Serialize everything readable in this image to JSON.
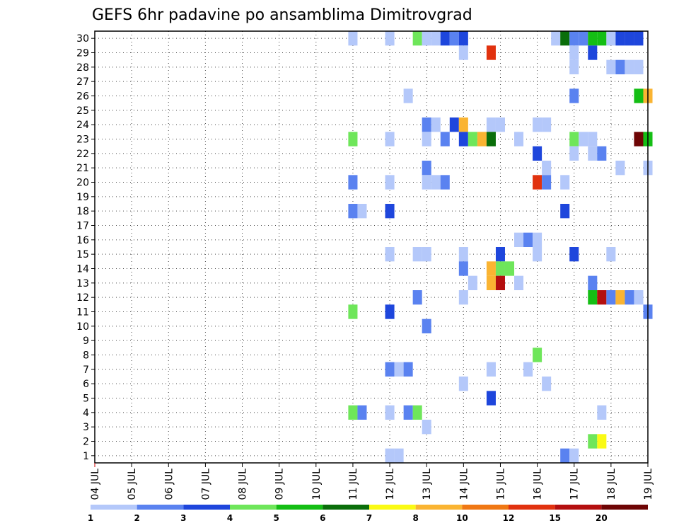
{
  "chart_data": {
    "type": "heatmap",
    "title": "GEFS 6hr padavine po ansamblima Dimitrovgrad",
    "x_tick_labels": [
      "04 JUL",
      "05 JUL",
      "06 JUL",
      "07 JUL",
      "08 JUL",
      "09 JUL",
      "10 JUL",
      "11 JUL",
      "12 JUL",
      "13 JUL",
      "14 JUL",
      "15 JUL",
      "16 JUL",
      "17 JUL",
      "18 JUL",
      "19 JUL"
    ],
    "x_range": [
      "04 JUL 00z",
      "19 JUL 00z"
    ],
    "x_step_hours": 6,
    "y_tick_labels": [
      "1",
      "2",
      "3",
      "4",
      "5",
      "6",
      "7",
      "8",
      "9",
      "10",
      "11",
      "12",
      "13",
      "14",
      "15",
      "16",
      "17",
      "18",
      "19",
      "20",
      "21",
      "22",
      "23",
      "24",
      "25",
      "26",
      "27",
      "28",
      "29",
      "30"
    ],
    "ylim": [
      1,
      30
    ],
    "grid": "dotted",
    "colorbar": {
      "position": "bottom",
      "tick_labels": [
        "1",
        "2",
        "3",
        "4",
        "5",
        "6",
        "7",
        "8",
        "10",
        "12",
        "15",
        "20"
      ],
      "colors": [
        "#b4c8fa",
        "#5a82f0",
        "#1e46dc",
        "#6ee65a",
        "#14be14",
        "#0a6e0a",
        "#fafa14",
        "#fab432",
        "#f07814",
        "#e1320f",
        "#b40f0f",
        "#6e0505"
      ]
    },
    "legend_note": "cell value = color class index 1..12 matching colorbar.colors",
    "cells": [
      {
        "x": "11 JUL 00z",
        "y": 30,
        "v": 1
      },
      {
        "x": "12 JUL 00z",
        "y": 30,
        "v": 1
      },
      {
        "x": "12 JUL 18z",
        "y": 30,
        "v": 4
      },
      {
        "x": "13 JUL 00z",
        "y": 30,
        "v": 1
      },
      {
        "x": "13 JUL 06z",
        "y": 30,
        "v": 1
      },
      {
        "x": "13 JUL 12z",
        "y": 30,
        "v": 3
      },
      {
        "x": "13 JUL 18z",
        "y": 30,
        "v": 2
      },
      {
        "x": "14 JUL 00z",
        "y": 30,
        "v": 3
      },
      {
        "x": "16 JUL 12z",
        "y": 30,
        "v": 1
      },
      {
        "x": "16 JUL 18z",
        "y": 30,
        "v": 6
      },
      {
        "x": "17 JUL 00z",
        "y": 30,
        "v": 2
      },
      {
        "x": "17 JUL 06z",
        "y": 30,
        "v": 2
      },
      {
        "x": "17 JUL 12z",
        "y": 30,
        "v": 5
      },
      {
        "x": "17 JUL 18z",
        "y": 30,
        "v": 5
      },
      {
        "x": "18 JUL 00z",
        "y": 30,
        "v": 1
      },
      {
        "x": "18 JUL 06z",
        "y": 30,
        "v": 3
      },
      {
        "x": "18 JUL 12z",
        "y": 30,
        "v": 3
      },
      {
        "x": "18 JUL 18z",
        "y": 30,
        "v": 3
      },
      {
        "x": "14 JUL 00z",
        "y": 29,
        "v": 1
      },
      {
        "x": "14 JUL 18z",
        "y": 29,
        "v": 10
      },
      {
        "x": "17 JUL 00z",
        "y": 29,
        "v": 1
      },
      {
        "x": "17 JUL 12z",
        "y": 29,
        "v": 3
      },
      {
        "x": "17 JUL 00z",
        "y": 28,
        "v": 1
      },
      {
        "x": "18 JUL 00z",
        "y": 28,
        "v": 1
      },
      {
        "x": "18 JUL 06z",
        "y": 28,
        "v": 2
      },
      {
        "x": "18 JUL 12z",
        "y": 28,
        "v": 1
      },
      {
        "x": "18 JUL 18z",
        "y": 28,
        "v": 1
      },
      {
        "x": "12 JUL 12z",
        "y": 26,
        "v": 1
      },
      {
        "x": "17 JUL 00z",
        "y": 26,
        "v": 2
      },
      {
        "x": "18 JUL 18z",
        "y": 26,
        "v": 5
      },
      {
        "x": "19 JUL 00z",
        "y": 26,
        "v": 8
      },
      {
        "x": "13 JUL 00z",
        "y": 24,
        "v": 2
      },
      {
        "x": "13 JUL 06z",
        "y": 24,
        "v": 1
      },
      {
        "x": "13 JUL 18z",
        "y": 24,
        "v": 3
      },
      {
        "x": "14 JUL 00z",
        "y": 24,
        "v": 8
      },
      {
        "x": "14 JUL 18z",
        "y": 24,
        "v": 1
      },
      {
        "x": "15 JUL 00z",
        "y": 24,
        "v": 1
      },
      {
        "x": "16 JUL 00z",
        "y": 24,
        "v": 1
      },
      {
        "x": "16 JUL 06z",
        "y": 24,
        "v": 1
      },
      {
        "x": "11 JUL 00z",
        "y": 23,
        "v": 4
      },
      {
        "x": "12 JUL 00z",
        "y": 23,
        "v": 1
      },
      {
        "x": "13 JUL 00z",
        "y": 23,
        "v": 1
      },
      {
        "x": "13 JUL 12z",
        "y": 23,
        "v": 2
      },
      {
        "x": "14 JUL 00z",
        "y": 23,
        "v": 3
      },
      {
        "x": "14 JUL 06z",
        "y": 23,
        "v": 4
      },
      {
        "x": "14 JUL 12z",
        "y": 23,
        "v": 8
      },
      {
        "x": "14 JUL 18z",
        "y": 23,
        "v": 6
      },
      {
        "x": "15 JUL 12z",
        "y": 23,
        "v": 1
      },
      {
        "x": "17 JUL 00z",
        "y": 23,
        "v": 4
      },
      {
        "x": "17 JUL 06z",
        "y": 23,
        "v": 1
      },
      {
        "x": "17 JUL 12z",
        "y": 23,
        "v": 1
      },
      {
        "x": "18 JUL 18z",
        "y": 23,
        "v": 12
      },
      {
        "x": "19 JUL 00z",
        "y": 23,
        "v": 5
      },
      {
        "x": "16 JUL 00z",
        "y": 22,
        "v": 3
      },
      {
        "x": "17 JUL 00z",
        "y": 22,
        "v": 1
      },
      {
        "x": "17 JUL 12z",
        "y": 22,
        "v": 1
      },
      {
        "x": "17 JUL 18z",
        "y": 22,
        "v": 2
      },
      {
        "x": "13 JUL 00z",
        "y": 21,
        "v": 2
      },
      {
        "x": "16 JUL 06z",
        "y": 21,
        "v": 1
      },
      {
        "x": "18 JUL 06z",
        "y": 21,
        "v": 1
      },
      {
        "x": "19 JUL 00z",
        "y": 21,
        "v": 1
      },
      {
        "x": "11 JUL 00z",
        "y": 20,
        "v": 2
      },
      {
        "x": "12 JUL 00z",
        "y": 20,
        "v": 1
      },
      {
        "x": "13 JUL 00z",
        "y": 20,
        "v": 1
      },
      {
        "x": "13 JUL 06z",
        "y": 20,
        "v": 1
      },
      {
        "x": "13 JUL 12z",
        "y": 20,
        "v": 2
      },
      {
        "x": "16 JUL 00z",
        "y": 20,
        "v": 10
      },
      {
        "x": "16 JUL 06z",
        "y": 20,
        "v": 2
      },
      {
        "x": "16 JUL 18z",
        "y": 20,
        "v": 1
      },
      {
        "x": "11 JUL 00z",
        "y": 18,
        "v": 2
      },
      {
        "x": "11 JUL 06z",
        "y": 18,
        "v": 1
      },
      {
        "x": "12 JUL 00z",
        "y": 18,
        "v": 3
      },
      {
        "x": "16 JUL 18z",
        "y": 18,
        "v": 3
      },
      {
        "x": "15 JUL 12z",
        "y": 16,
        "v": 1
      },
      {
        "x": "15 JUL 18z",
        "y": 16,
        "v": 2
      },
      {
        "x": "16 JUL 00z",
        "y": 16,
        "v": 1
      },
      {
        "x": "12 JUL 00z",
        "y": 15,
        "v": 1
      },
      {
        "x": "12 JUL 18z",
        "y": 15,
        "v": 1
      },
      {
        "x": "13 JUL 00z",
        "y": 15,
        "v": 1
      },
      {
        "x": "14 JUL 00z",
        "y": 15,
        "v": 1
      },
      {
        "x": "15 JUL 00z",
        "y": 15,
        "v": 3
      },
      {
        "x": "16 JUL 00z",
        "y": 15,
        "v": 1
      },
      {
        "x": "17 JUL 00z",
        "y": 15,
        "v": 3
      },
      {
        "x": "18 JUL 00z",
        "y": 15,
        "v": 1
      },
      {
        "x": "14 JUL 00z",
        "y": 14,
        "v": 2
      },
      {
        "x": "14 JUL 18z",
        "y": 14,
        "v": 8
      },
      {
        "x": "15 JUL 00z",
        "y": 14,
        "v": 4
      },
      {
        "x": "15 JUL 06z",
        "y": 14,
        "v": 4
      },
      {
        "x": "14 JUL 06z",
        "y": 13,
        "v": 1
      },
      {
        "x": "14 JUL 18z",
        "y": 13,
        "v": 8
      },
      {
        "x": "15 JUL 00z",
        "y": 13,
        "v": 11
      },
      {
        "x": "15 JUL 12z",
        "y": 13,
        "v": 1
      },
      {
        "x": "17 JUL 12z",
        "y": 13,
        "v": 2
      },
      {
        "x": "12 JUL 18z",
        "y": 12,
        "v": 2
      },
      {
        "x": "14 JUL 00z",
        "y": 12,
        "v": 1
      },
      {
        "x": "17 JUL 12z",
        "y": 12,
        "v": 5
      },
      {
        "x": "17 JUL 18z",
        "y": 12,
        "v": 11
      },
      {
        "x": "18 JUL 00z",
        "y": 12,
        "v": 2
      },
      {
        "x": "18 JUL 06z",
        "y": 12,
        "v": 8
      },
      {
        "x": "18 JUL 12z",
        "y": 12,
        "v": 2
      },
      {
        "x": "18 JUL 18z",
        "y": 12,
        "v": 1
      },
      {
        "x": "11 JUL 00z",
        "y": 11,
        "v": 4
      },
      {
        "x": "12 JUL 00z",
        "y": 11,
        "v": 3
      },
      {
        "x": "19 JUL 00z",
        "y": 11,
        "v": 2
      },
      {
        "x": "13 JUL 00z",
        "y": 10,
        "v": 2
      },
      {
        "x": "16 JUL 00z",
        "y": 8,
        "v": 4
      },
      {
        "x": "12 JUL 00z",
        "y": 7,
        "v": 2
      },
      {
        "x": "12 JUL 06z",
        "y": 7,
        "v": 1
      },
      {
        "x": "12 JUL 12z",
        "y": 7,
        "v": 2
      },
      {
        "x": "14 JUL 18z",
        "y": 7,
        "v": 1
      },
      {
        "x": "15 JUL 18z",
        "y": 7,
        "v": 1
      },
      {
        "x": "14 JUL 00z",
        "y": 6,
        "v": 1
      },
      {
        "x": "16 JUL 06z",
        "y": 6,
        "v": 1
      },
      {
        "x": "14 JUL 18z",
        "y": 5,
        "v": 3
      },
      {
        "x": "11 JUL 00z",
        "y": 4,
        "v": 4
      },
      {
        "x": "11 JUL 06z",
        "y": 4,
        "v": 2
      },
      {
        "x": "12 JUL 00z",
        "y": 4,
        "v": 1
      },
      {
        "x": "12 JUL 12z",
        "y": 4,
        "v": 2
      },
      {
        "x": "12 JUL 18z",
        "y": 4,
        "v": 4
      },
      {
        "x": "17 JUL 18z",
        "y": 4,
        "v": 1
      },
      {
        "x": "13 JUL 00z",
        "y": 3,
        "v": 1
      },
      {
        "x": "17 JUL 12z",
        "y": 2,
        "v": 4
      },
      {
        "x": "17 JUL 18z",
        "y": 2,
        "v": 7
      },
      {
        "x": "12 JUL 00z",
        "y": 1,
        "v": 1
      },
      {
        "x": "12 JUL 06z",
        "y": 1,
        "v": 1
      },
      {
        "x": "16 JUL 18z",
        "y": 1,
        "v": 2
      },
      {
        "x": "17 JUL 00z",
        "y": 1,
        "v": 1
      }
    ]
  }
}
